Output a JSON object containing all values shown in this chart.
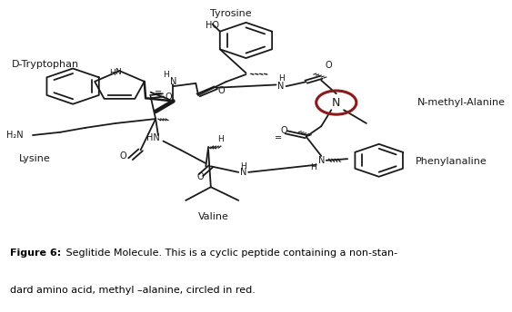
{
  "bg_color": "#ffffff",
  "border_color": "#c8c8c8",
  "molecule_color": "#1a1a1a",
  "circle_color": "#8b1a1a",
  "label_Tyrosine": "Tyrosine",
  "label_DTryptophan": "D-Tryptophan",
  "label_Lysine": "Lysine",
  "label_Valine": "Valine",
  "label_Phenylanaline": "Phenylanaline",
  "label_NmethylAlanine": "N-methyl-Alanine",
  "caption_bold": "Figure 6:",
  "caption_text": " Seglitide Molecule. This is a cyclic peptide containing a non-stan-",
  "caption_text2": "dard amino acid, methyl –alanine, circled in red.",
  "fig_width": 5.63,
  "fig_height": 3.44,
  "dpi": 100
}
